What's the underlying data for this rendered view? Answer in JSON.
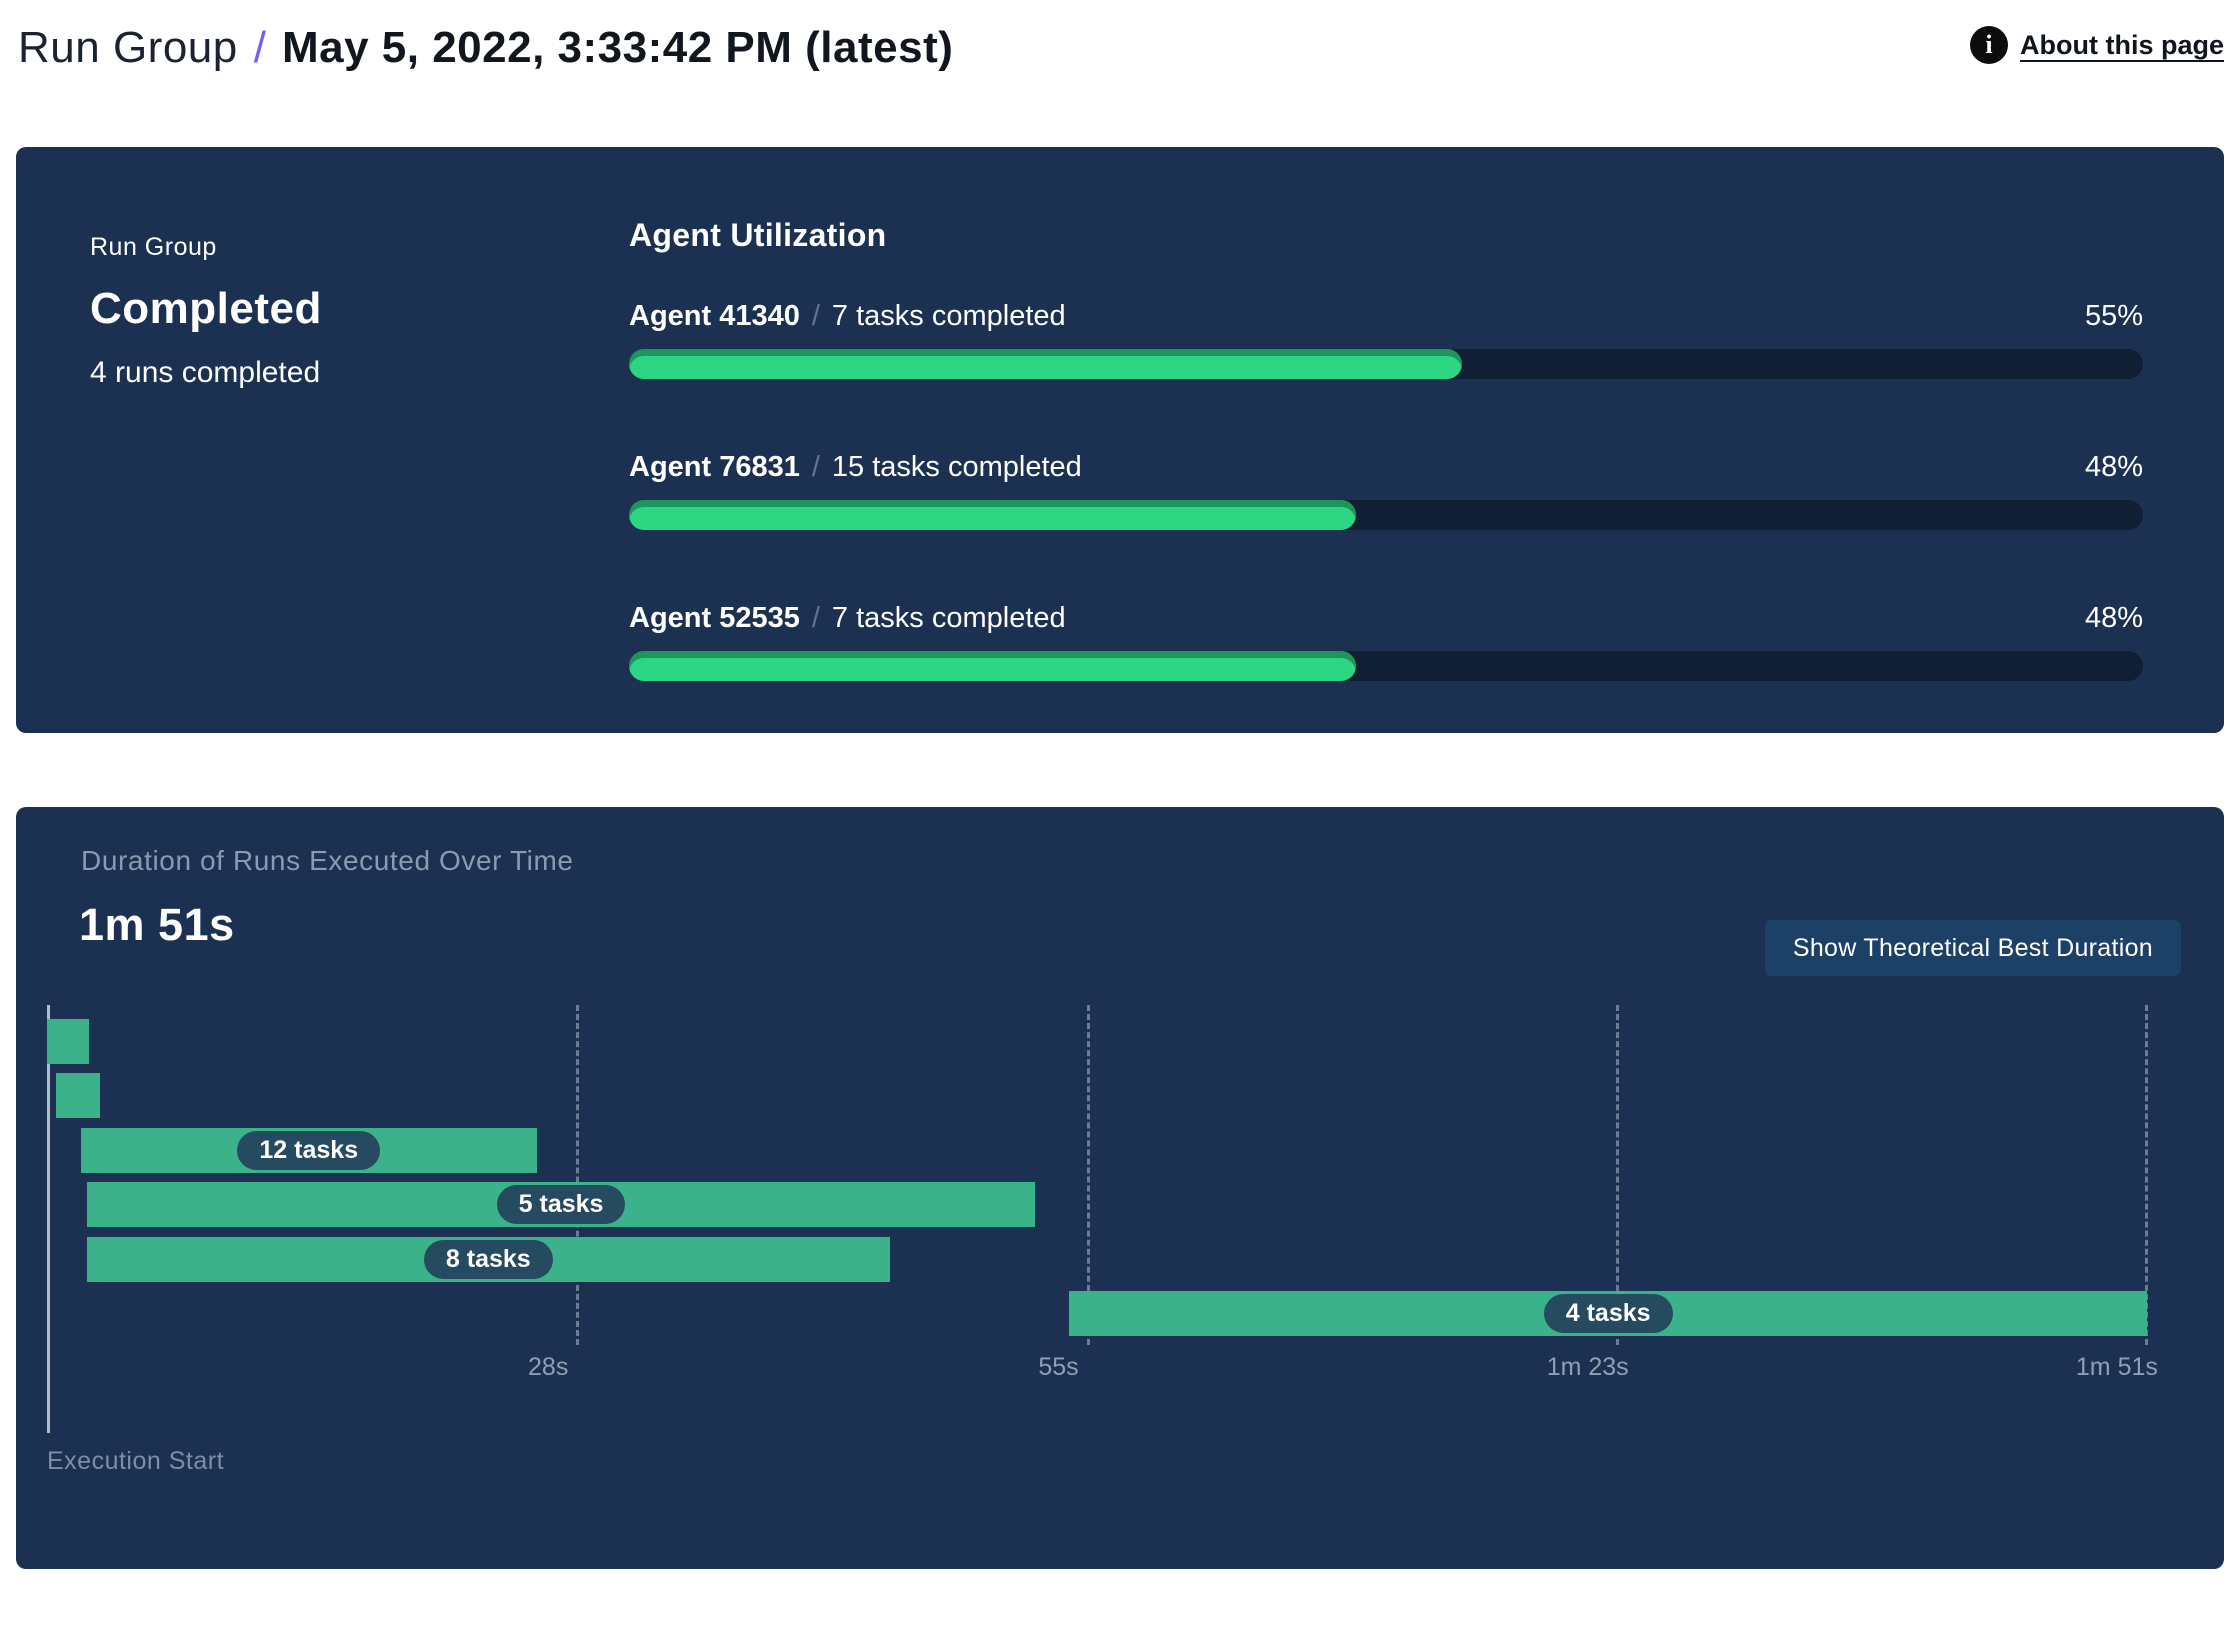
{
  "header": {
    "breadcrumb": "Run Group",
    "separator": "/",
    "title": "May 5, 2022, 3:33:42 PM (latest)",
    "about_link": "About this page",
    "info_icon_glyph": "i"
  },
  "status_card": {
    "label": "Run Group",
    "status": "Completed",
    "runs_summary": "4 runs completed"
  },
  "agent_utilization": {
    "title": "Agent Utilization",
    "agents": [
      {
        "name": "Agent 41340",
        "separator": "/",
        "tasks": "7 tasks completed",
        "percent": 55,
        "percent_label": "55%"
      },
      {
        "name": "Agent 76831",
        "separator": "/",
        "tasks": "15 tasks completed",
        "percent": 48,
        "percent_label": "48%"
      },
      {
        "name": "Agent 52535",
        "separator": "/",
        "tasks": "7 tasks completed",
        "percent": 48,
        "percent_label": "48%"
      }
    ]
  },
  "duration_panel": {
    "subtitle": "Duration of Runs Executed Over Time",
    "total_duration": "1m 51s",
    "button_label": "Show Theoretical Best Duration",
    "execution_start_label": "Execution Start"
  },
  "chart_data": {
    "type": "gantt",
    "title": "Duration of Runs Executed Over Time",
    "total_duration_label": "1m 51s",
    "total_duration_seconds": 111,
    "x_axis": {
      "start_label": "Execution Start",
      "ticks": [
        {
          "t": 28,
          "label": "28s"
        },
        {
          "t": 55,
          "label": "55s"
        },
        {
          "t": 83,
          "label": "1m 23s"
        },
        {
          "t": 111,
          "label": "1m 51s"
        }
      ],
      "gridlines": "dashed-vertical"
    },
    "runs": [
      {
        "row": 0,
        "start_s": 0.0,
        "end_s": 2.2,
        "label": ""
      },
      {
        "row": 1,
        "start_s": 0.5,
        "end_s": 2.8,
        "label": ""
      },
      {
        "row": 2,
        "start_s": 1.8,
        "end_s": 25.9,
        "label": "12 tasks"
      },
      {
        "row": 3,
        "start_s": 2.1,
        "end_s": 52.3,
        "label": "5 tasks"
      },
      {
        "row": 4,
        "start_s": 2.1,
        "end_s": 44.6,
        "label": "8 tasks"
      },
      {
        "row": 5,
        "start_s": 54.1,
        "end_s": 111.1,
        "label": "4 tasks"
      }
    ]
  },
  "colors": {
    "panel_bg": "#1c3152",
    "progress_fill_green": "#2dd683",
    "progress_track": "#101f33",
    "gantt_bar_green": "#3cb28b",
    "task_pill_bg": "#264a60",
    "breadcrumb_slash_purple": "#7b5bf5",
    "button_bg": "#1d4166",
    "muted_text": "#8b9ab0",
    "page_bg": "#ffffff"
  }
}
